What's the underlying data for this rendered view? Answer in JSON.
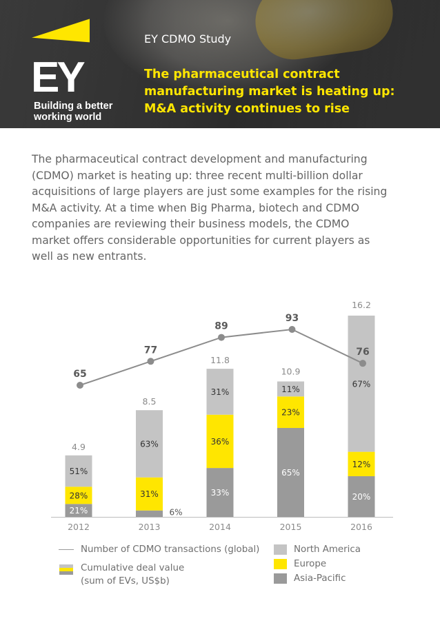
{
  "header": {
    "kicker": "EY CDMO Study",
    "headline_lines": [
      "The pharmaceutical contract",
      "manufacturing market is heating up:",
      "M&A activity continues to rise"
    ],
    "logo_text": "EY",
    "logo_tagline_lines": [
      "Building a better",
      "working world"
    ]
  },
  "intro_lines": [
    "The pharmaceutical contract development and manufacturing",
    "(CDMO) market is heating up: three recent multi-billion dollar",
    "acquisitions of large players are just some examples for the rising",
    "M&A activity. At a time when Big Pharma, biotech and CDMO",
    "companies are reviewing their business models, the CDMO",
    "market offers considerable opportunities for current players as",
    "well as new entrants."
  ],
  "colors": {
    "north_america": "#c4c4c4",
    "europe": "#ffe600",
    "asia_pacific": "#9a9a9a",
    "line": "#8c8c8c",
    "headline": "#ffe600"
  },
  "chart_data": {
    "type": "bar",
    "categories": [
      "2012",
      "2013",
      "2014",
      "2015",
      "2016"
    ],
    "series": [
      {
        "name": "Asia-Pacific",
        "percent_labels": [
          "21%",
          "6%",
          "33%",
          "65%",
          "20%"
        ],
        "share": [
          0.21,
          0.06,
          0.33,
          0.65,
          0.2
        ]
      },
      {
        "name": "Europe",
        "percent_labels": [
          "28%",
          "31%",
          "36%",
          "23%",
          "12%"
        ],
        "share": [
          0.28,
          0.31,
          0.36,
          0.23,
          0.12
        ]
      },
      {
        "name": "North America",
        "percent_labels": [
          "51%",
          "63%",
          "31%",
          "11%",
          "67%"
        ],
        "share": [
          0.51,
          0.63,
          0.31,
          0.11,
          0.67
        ]
      }
    ],
    "totals": [
      4.9,
      8.5,
      11.8,
      10.9,
      16.2
    ],
    "total_labels": [
      "4.9",
      "8.5",
      "11.8",
      "10.9",
      "16.2"
    ],
    "line": {
      "name": "Number of CDMO transactions (global)",
      "values": [
        65,
        77,
        89,
        93,
        76
      ],
      "labels": [
        "65",
        "77",
        "89",
        "93",
        "76"
      ]
    },
    "ylim": [
      0,
      16.2
    ],
    "grid": false,
    "legend_position": "bottom",
    "xlabel": "",
    "ylabel": ""
  },
  "legend": {
    "line_label": "Number of CDMO transactions (global)",
    "bar_label_lines": [
      "Cumulative deal value",
      "(sum of EVs, US$b)"
    ],
    "north_america": "North America",
    "europe": "Europe",
    "asia_pacific": "Asia-Pacific"
  }
}
